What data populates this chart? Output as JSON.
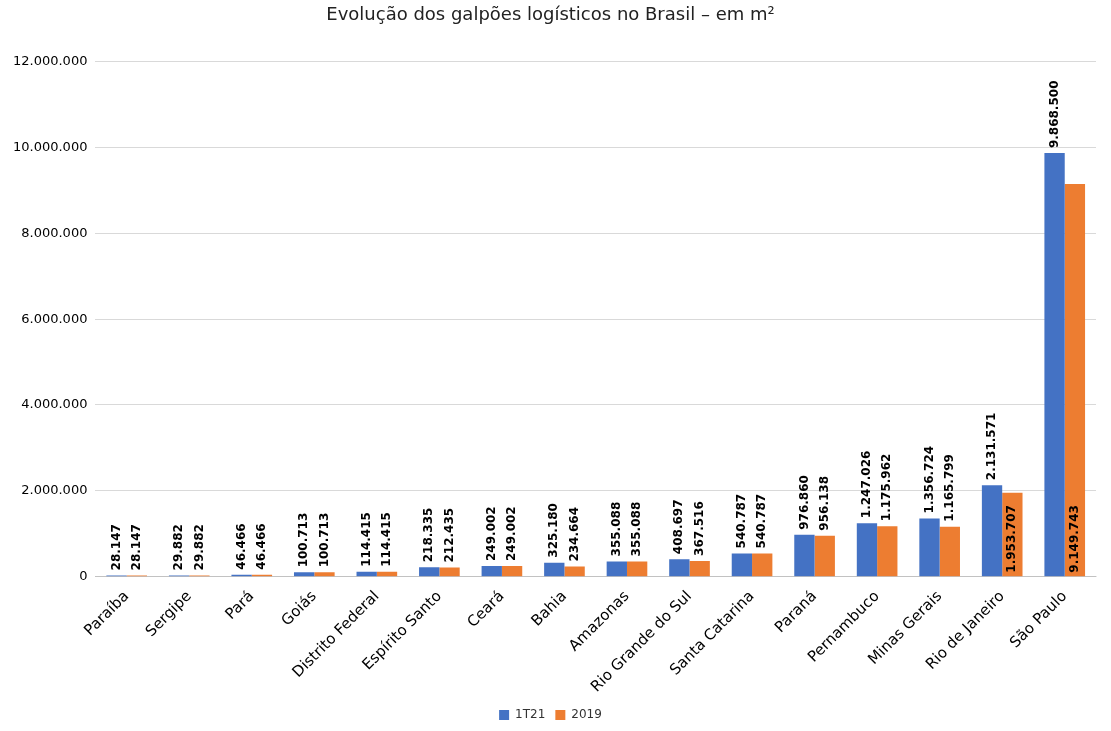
{
  "chart_data": {
    "type": "bar",
    "title": "Evolução dos galpões logísticos no Brasil – em m²",
    "categories": [
      "Paraíba",
      "Sergipe",
      "Pará",
      "Goiás",
      "Distrito Federal",
      "Espírito Santo",
      "Ceará",
      "Bahia",
      "Amazonas",
      "Rio Grande do Sul",
      "Santa Catarina",
      "Paraná",
      "Pernambuco",
      "Minas Gerais",
      "Rio de Janeiro",
      "São Paulo"
    ],
    "series": [
      {
        "name": "1T21",
        "color": "#4472c4",
        "values": [
          28147,
          29882,
          46466,
          100713,
          114415,
          218335,
          249002,
          325180,
          355088,
          408697,
          540787,
          976860,
          1247026,
          1356724,
          2131571,
          9868500
        ],
        "value_labels": [
          "28.147",
          "29.882",
          "46.466",
          "100.713",
          "114.415",
          "218.335",
          "249.002",
          "325.180",
          "355.088",
          "408.697",
          "540.787",
          "976.860",
          "1.247.026",
          "1.356.724",
          "2.131.571",
          "9.868.500"
        ]
      },
      {
        "name": "2019",
        "color": "#ed7d31",
        "values": [
          28147,
          29882,
          46466,
          100713,
          114415,
          212435,
          249002,
          234664,
          355088,
          367516,
          540787,
          956138,
          1175962,
          1165799,
          1953707,
          9149743
        ],
        "value_labels": [
          "28.147",
          "29.882",
          "46.466",
          "100.713",
          "114.415",
          "212.435",
          "249.002",
          "234.664",
          "355.088",
          "367.516",
          "540.787",
          "956.138",
          "1.175.962",
          "1.165.799",
          "1.953.707",
          "9.149.743"
        ]
      }
    ],
    "ylim": [
      0,
      12000000
    ],
    "yticks": [
      {
        "value": 0,
        "label": "0"
      },
      {
        "value": 2000000,
        "label": "2.000.000"
      },
      {
        "value": 4000000,
        "label": "4.000.000"
      },
      {
        "value": 6000000,
        "label": "6.000.000"
      },
      {
        "value": 8000000,
        "label": "8.000.000"
      },
      {
        "value": 10000000,
        "label": "10.000.000"
      },
      {
        "value": 12000000,
        "label": "12.000.000"
      }
    ],
    "grid": "y",
    "legend": "bottom"
  }
}
